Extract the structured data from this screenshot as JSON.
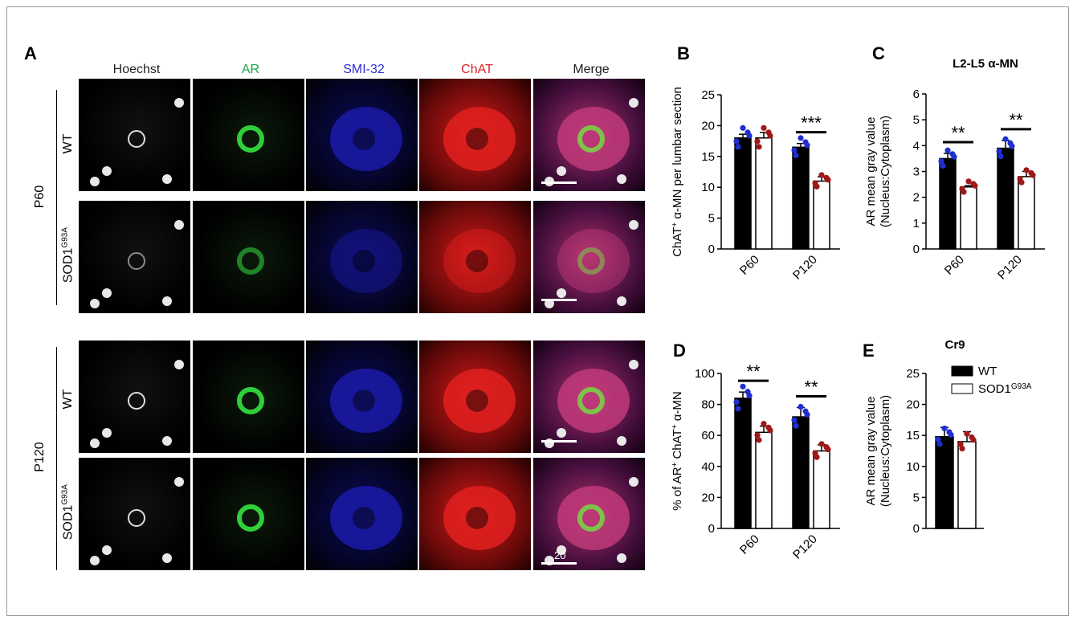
{
  "panels": {
    "A": "A",
    "B": "B",
    "C": "C",
    "D": "D",
    "E": "E"
  },
  "columns": [
    {
      "label": "Hoechst",
      "color": "#222222"
    },
    {
      "label": "AR",
      "color": "#1aa64a"
    },
    {
      "label": "SMI-32",
      "color": "#2b2bd0"
    },
    {
      "label": "ChAT",
      "color": "#e0202a"
    },
    {
      "label": "Merge",
      "color": "#222222"
    }
  ],
  "groups": {
    "p60": "P60",
    "p120": "P120"
  },
  "genotypes": {
    "wt": "WT",
    "sod_base": "SOD1",
    "sod_sup": "G93A"
  },
  "scale_label": "20",
  "legend": {
    "wt": "WT",
    "sod_base": "SOD1",
    "sod_sup": "G93A"
  },
  "colors": {
    "wt_bar": "#000000",
    "sod_bar": "#ffffff",
    "wt_dot": "#1f2fd0",
    "sod_dot": "#a01818"
  },
  "chart_data": [
    {
      "id": "B",
      "type": "bar",
      "title": "",
      "ylabel_parts": {
        "a": "ChAT",
        "sup": "+",
        "b": " α-MN per lumbar section"
      },
      "categories": [
        "P60",
        "P120"
      ],
      "ylim": [
        0,
        25
      ],
      "yticks": [
        0,
        5,
        10,
        15,
        20,
        25
      ],
      "series": [
        {
          "name": "WT",
          "values": [
            18,
            16.5
          ],
          "err": [
            0.6,
            0.6
          ]
        },
        {
          "name": "SOD1G93A",
          "values": [
            18,
            11
          ],
          "err": [
            0.9,
            0.7
          ]
        }
      ],
      "significance": [
        {
          "category": "P120",
          "label": "***"
        }
      ]
    },
    {
      "id": "C",
      "type": "bar",
      "title": "L2-L5 α-MN",
      "ylabel_lines": [
        "AR mean gray value",
        "(Nucleus:Cytoplasm)"
      ],
      "categories": [
        "P60",
        "P120"
      ],
      "ylim": [
        0,
        6
      ],
      "yticks": [
        0,
        1,
        2,
        3,
        4,
        5,
        6
      ],
      "series": [
        {
          "name": "WT",
          "values": [
            3.5,
            3.9
          ],
          "err": [
            0.2,
            0.3
          ]
        },
        {
          "name": "SOD1G93A",
          "values": [
            2.4,
            2.8
          ],
          "err": [
            0.05,
            0.2
          ]
        }
      ],
      "significance": [
        {
          "category": "P60",
          "label": "**"
        },
        {
          "category": "P120",
          "label": "**"
        }
      ]
    },
    {
      "id": "D",
      "type": "bar",
      "title": "",
      "ylabel_parts": {
        "a": "% of AR",
        "sup": "+",
        "b": " ChAT",
        "sup2": "+",
        "c": " α-MN"
      },
      "categories": [
        "P60",
        "P120"
      ],
      "ylim": [
        0,
        100
      ],
      "yticks": [
        0,
        20,
        40,
        60,
        80,
        100
      ],
      "series": [
        {
          "name": "WT",
          "values": [
            84,
            72
          ],
          "err": [
            4,
            6
          ]
        },
        {
          "name": "SOD1G93A",
          "values": [
            62,
            50
          ],
          "err": [
            4,
            4
          ]
        }
      ],
      "significance": [
        {
          "category": "P60",
          "label": "**"
        },
        {
          "category": "P120",
          "label": "**"
        }
      ]
    },
    {
      "id": "E",
      "type": "bar",
      "title": "Cr9",
      "ylabel_lines": [
        "AR mean gray value",
        "(Nucleus:Cytoplasm)"
      ],
      "categories": [
        ""
      ],
      "ylim": [
        0,
        25
      ],
      "yticks": [
        0,
        5,
        10,
        15,
        20,
        25
      ],
      "series": [
        {
          "name": "WT",
          "values": [
            14.8
          ],
          "err": [
            1.5
          ]
        },
        {
          "name": "SOD1G93A",
          "values": [
            14
          ],
          "err": [
            1.6
          ]
        }
      ]
    }
  ]
}
